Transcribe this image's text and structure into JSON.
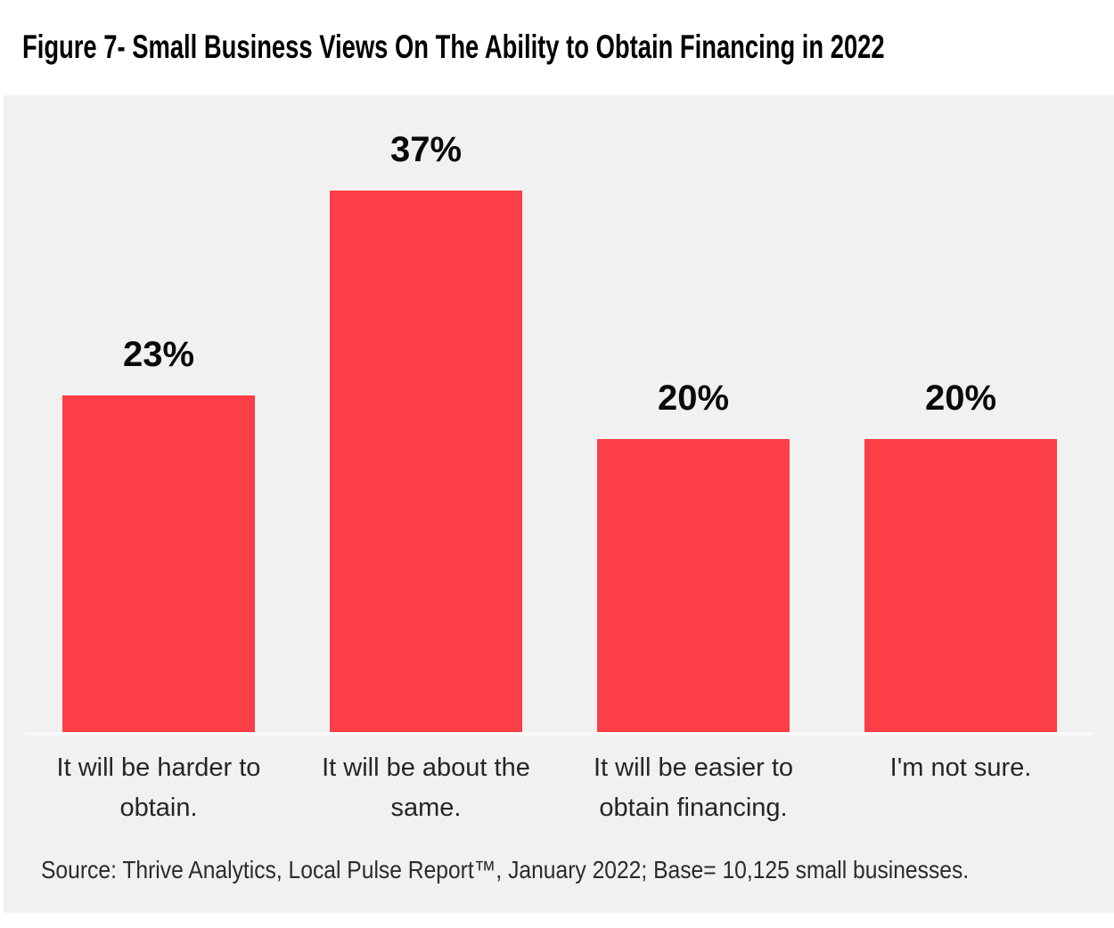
{
  "page": {
    "background": "#FFFFFF",
    "panel_background": "#F1F1F1",
    "baseline_color": "#F9F9F9"
  },
  "chart_data": {
    "type": "bar",
    "title": "Figure 7- Small Business Views On The Ability to Obtain Financing in 2022",
    "categories": [
      "It will be harder to obtain.",
      "It will be about the same.",
      "It will be easier to obtain financing.",
      "I'm not sure."
    ],
    "values": [
      23,
      37,
      20,
      20
    ],
    "value_labels": [
      "23%",
      "37%",
      "20%",
      "20%"
    ],
    "bar_color": "#FC3E47",
    "xlabel": "",
    "ylabel": "",
    "ylim": [
      0,
      40
    ],
    "grid": false,
    "legend": false,
    "source": "Source: Thrive Analytics, Local Pulse Report™, January 2022; Base= 10,125 small businesses."
  }
}
